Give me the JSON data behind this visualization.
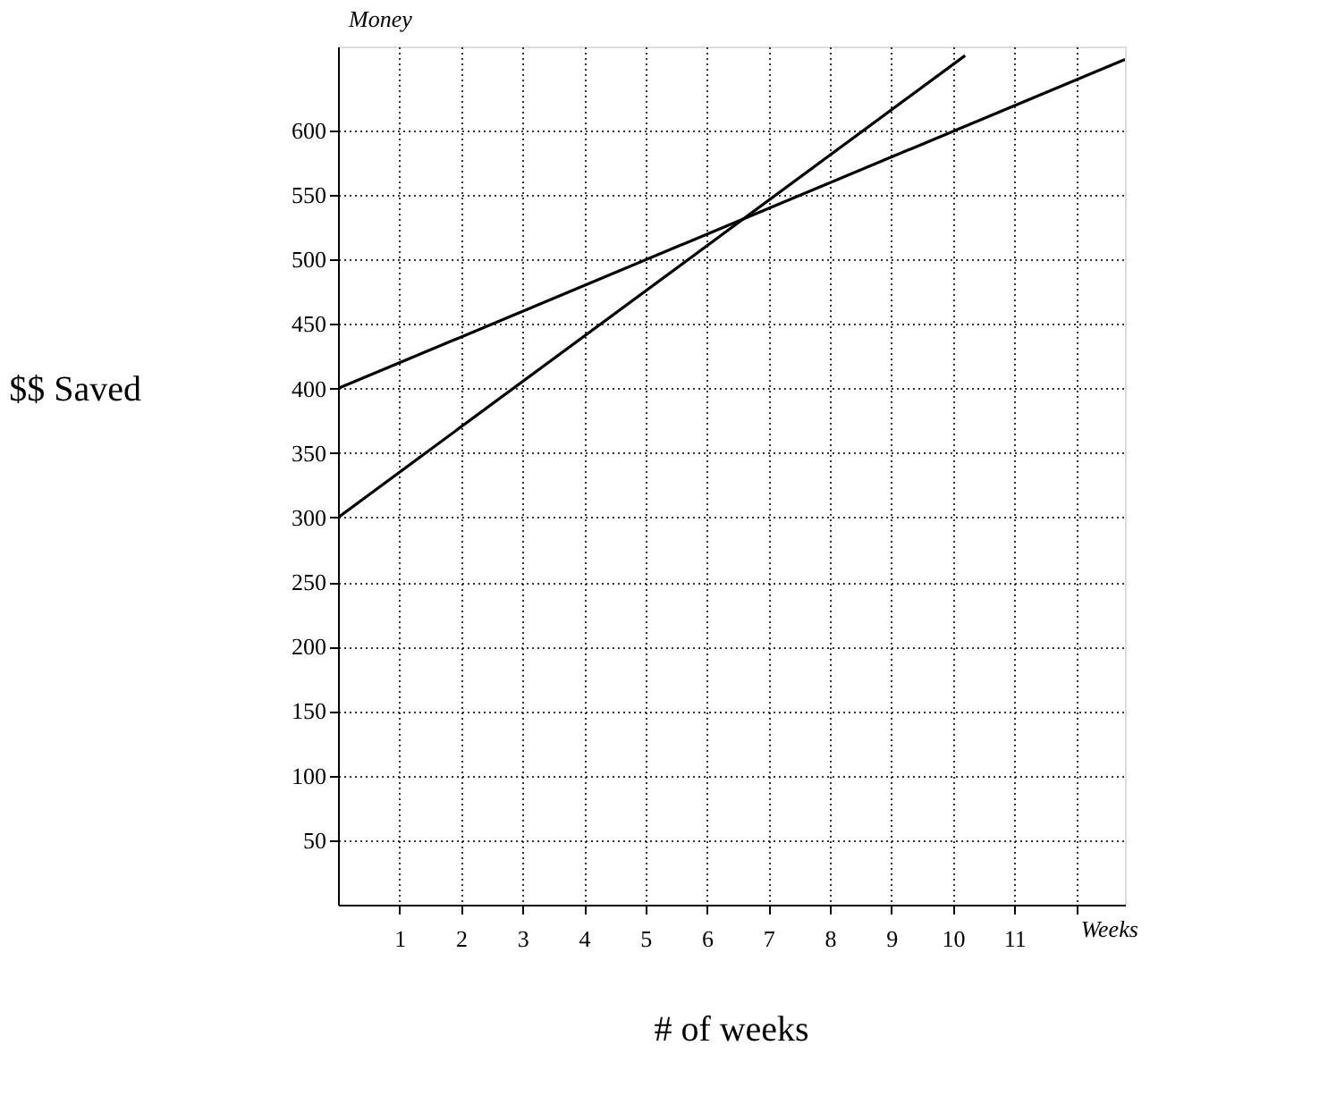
{
  "chart_data": {
    "type": "line",
    "xlabel": "Weeks",
    "ylabel": "Money",
    "annotations": [
      "$$ Saved",
      "# of weeks"
    ],
    "series": [
      {
        "color": "#000000",
        "x": [
          0,
          12.8
        ],
        "values": [
          400,
          655
        ]
      },
      {
        "color": "#000000",
        "x": [
          0,
          10.2
        ],
        "values": [
          300,
          658
        ]
      }
    ],
    "xlim": [
      0,
      12.8
    ],
    "ylim": [
      0,
      665
    ],
    "xticks": [
      1,
      2,
      3,
      4,
      5,
      6,
      7,
      8,
      9,
      10,
      11,
      {
        "value": 12,
        "label": null
      }
    ],
    "yticks": [
      50,
      100,
      150,
      200,
      250,
      300,
      350,
      400,
      450,
      500,
      550,
      600
    ],
    "grid": true,
    "marker": "none",
    "line_style": "solid"
  }
}
